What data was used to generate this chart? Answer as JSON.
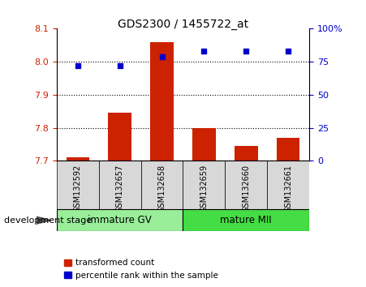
{
  "title": "GDS2300 / 1455722_at",
  "categories": [
    "GSM132592",
    "GSM132657",
    "GSM132658",
    "GSM132659",
    "GSM132660",
    "GSM132661"
  ],
  "bar_values": [
    7.71,
    7.845,
    8.06,
    7.8,
    7.745,
    7.77
  ],
  "bar_baseline": 7.7,
  "bar_color": "#cc2200",
  "scatter_values": [
    72,
    72,
    79,
    83,
    83,
    83
  ],
  "scatter_color": "#0000cc",
  "ylim_left": [
    7.7,
    8.1
  ],
  "ylim_right": [
    0,
    100
  ],
  "yticks_left": [
    7.7,
    7.8,
    7.9,
    8.0,
    8.1
  ],
  "yticks_right": [
    0,
    25,
    50,
    75,
    100
  ],
  "ytick_labels_right": [
    "0",
    "25",
    "50",
    "75",
    "100%"
  ],
  "grid_values": [
    7.8,
    7.9,
    8.0
  ],
  "group_labels": [
    "immature GV",
    "mature MII"
  ],
  "group_ranges": [
    [
      0,
      3
    ],
    [
      3,
      6
    ]
  ],
  "group_colors_light": "#99ee99",
  "group_colors_dark": "#44dd44",
  "xlabel_left": "development stage",
  "legend_items": [
    "transformed count",
    "percentile rank within the sample"
  ],
  "legend_colors": [
    "#cc2200",
    "#0000cc"
  ],
  "tick_color_left": "#cc2200",
  "tick_color_right": "#0000cc",
  "sample_bg_color": "#d8d8d8",
  "bar_width": 0.55
}
